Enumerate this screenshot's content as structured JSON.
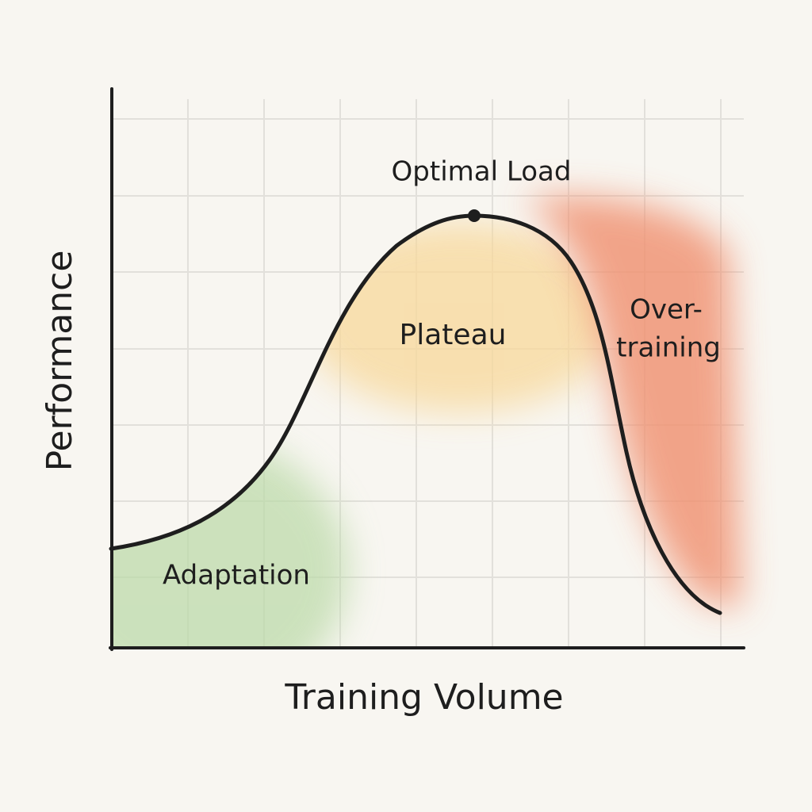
{
  "axes": {
    "x_label": "Training Volume",
    "y_label": "Performance"
  },
  "peak": {
    "label": "Optimal Load"
  },
  "regions": [
    {
      "label": "Adaptation"
    },
    {
      "label": "Plateau"
    },
    {
      "lines": [
        "Over-",
        "training"
      ]
    }
  ]
}
